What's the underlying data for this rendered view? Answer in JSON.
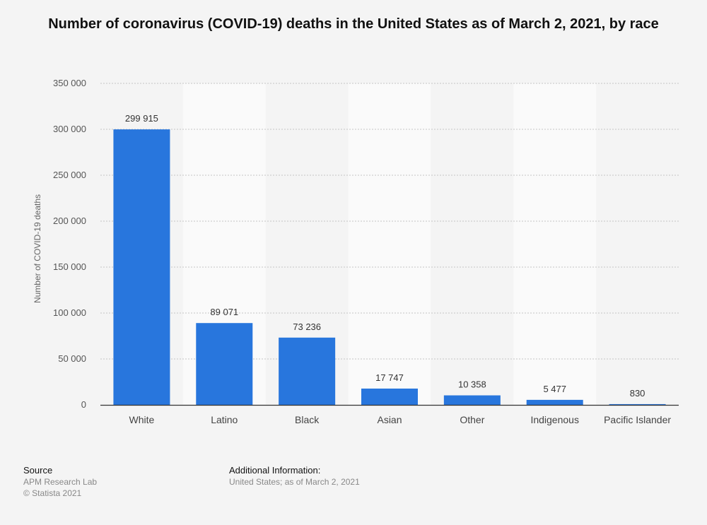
{
  "chart_data": {
    "type": "bar",
    "title": "Number of coronavirus (COVID-19) deaths in the United States as of March 2, 2021, by race",
    "xlabel": "",
    "ylabel": "Number of COVID-19 deaths",
    "categories": [
      "White",
      "Latino",
      "Black",
      "Asian",
      "Other",
      "Indigenous",
      "Pacific Islander"
    ],
    "values": [
      299915,
      89071,
      73236,
      17747,
      10358,
      5477,
      830
    ],
    "value_labels": [
      "299 915",
      "89 071",
      "73 236",
      "17 747",
      "10 358",
      "5 477",
      "830"
    ],
    "ylim": [
      0,
      350000
    ],
    "yticks": [
      0,
      50000,
      100000,
      150000,
      200000,
      250000,
      300000,
      350000
    ],
    "ytick_labels": [
      "0",
      "50 000",
      "100 000",
      "150 000",
      "200 000",
      "250 000",
      "300 000",
      "350 000"
    ],
    "grid": true,
    "bar_color": "#2876dd"
  },
  "footer": {
    "source_heading": "Source",
    "source_lines": [
      "APM Research Lab",
      "© Statista 2021"
    ],
    "info_heading": "Additional Information:",
    "info_lines": [
      "United States; as of March 2, 2021"
    ]
  }
}
